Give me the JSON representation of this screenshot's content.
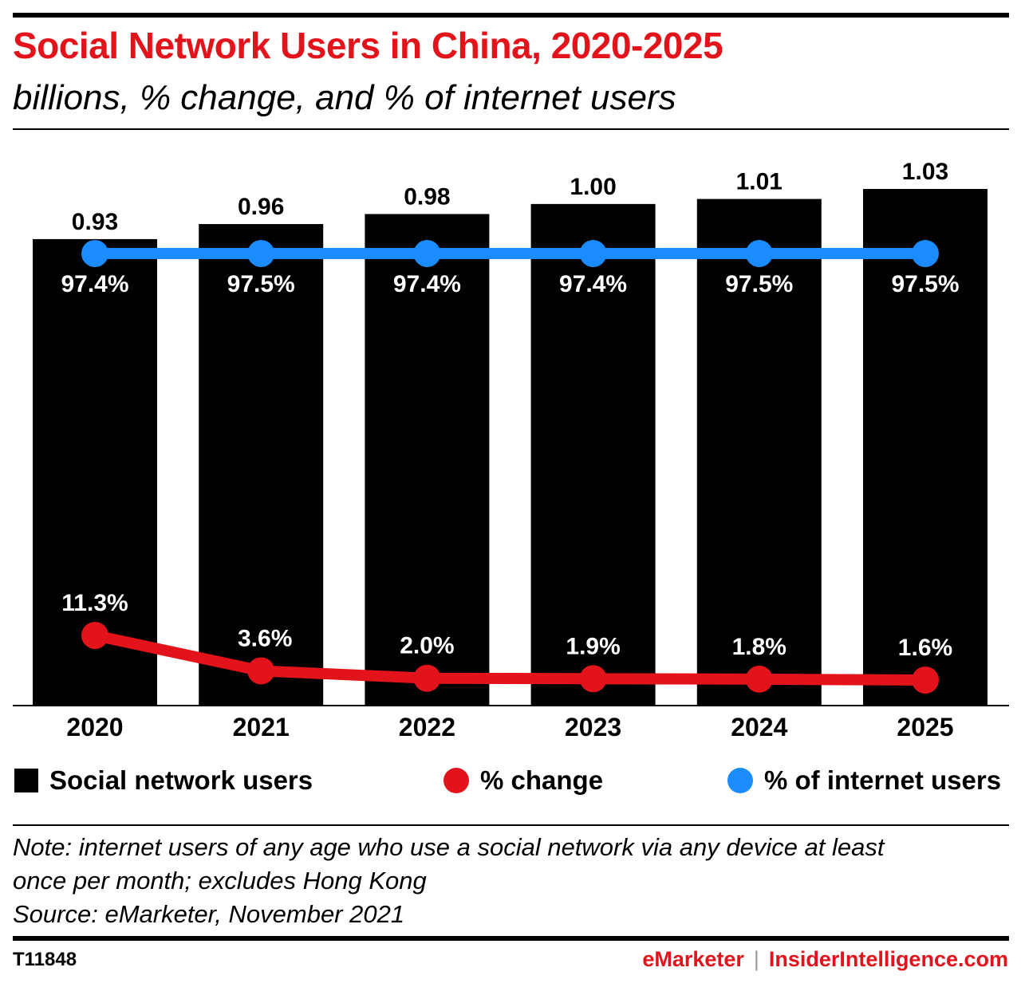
{
  "header": {
    "title": "Social Network Users in China, 2020-2025",
    "subtitle": "billions, % change, and % of internet users"
  },
  "chart_data": {
    "type": "bar",
    "categories": [
      "2020",
      "2021",
      "2022",
      "2023",
      "2024",
      "2025"
    ],
    "series": [
      {
        "name": "Social network users",
        "type": "bar",
        "color": "#000000",
        "values": [
          0.93,
          0.96,
          0.98,
          1.0,
          1.01,
          1.03
        ],
        "labels": [
          "0.93",
          "0.96",
          "0.98",
          "1.00",
          "1.01",
          "1.03"
        ]
      },
      {
        "name": "% change",
        "type": "line",
        "color": "#e3131b",
        "values": [
          11.3,
          3.6,
          2.0,
          1.9,
          1.8,
          1.6
        ],
        "labels": [
          "11.3%",
          "3.6%",
          "2.0%",
          "1.9%",
          "1.8%",
          "1.6%"
        ]
      },
      {
        "name": "% of internet users",
        "type": "line",
        "color": "#1a8cff",
        "values": [
          97.4,
          97.5,
          97.4,
          97.4,
          97.5,
          97.5
        ],
        "labels": [
          "97.4%",
          "97.5%",
          "97.4%",
          "97.4%",
          "97.5%",
          "97.5%"
        ]
      }
    ],
    "title": "Social Network Users in China, 2020-2025",
    "subtitle": "billions, % change, and % of internet users",
    "legend": "bottom",
    "grid": false
  },
  "legend": {
    "bars": "Social network users",
    "change": "% change",
    "share": "% of internet users"
  },
  "notes": {
    "line1": "Note: internet users of any age who use a social network via any device at least",
    "line2": "once per month; excludes Hong Kong",
    "line3": "Source: eMarketer, November 2021"
  },
  "footer": {
    "id": "T11848",
    "brand1": "eMarketer",
    "separator": "|",
    "brand2": "InsiderIntelligence.com"
  },
  "colors": {
    "accent": "#e3131b",
    "bar": "#000000",
    "share_line": "#1a8cff",
    "change_line": "#e3131b"
  }
}
